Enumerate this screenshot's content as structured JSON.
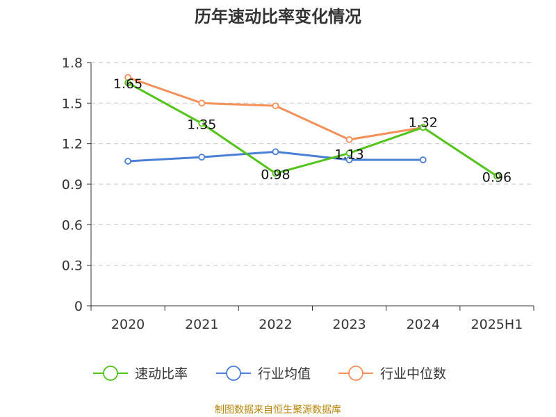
{
  "chart_data": {
    "type": "line",
    "title": "历年速动比率变化情况",
    "categories": [
      "2020",
      "2021",
      "2022",
      "2023",
      "2024",
      "2025H1"
    ],
    "ylim": [
      0,
      1.8
    ],
    "yticks": [
      "0",
      "0.3",
      "0.6",
      "0.9",
      "1.2",
      "1.5",
      "1.8"
    ],
    "grid": true,
    "legend_position": "bottom",
    "series": [
      {
        "name": "速动比率",
        "color": "#52c41a",
        "values": [
          1.65,
          1.35,
          0.98,
          1.13,
          1.32,
          0.96
        ],
        "labels": [
          "1.65",
          "1.35",
          "0.98",
          "1.13",
          "1.32",
          "0.96"
        ]
      },
      {
        "name": "行业均值",
        "color": "#4a7fd6",
        "values": [
          1.07,
          1.1,
          1.14,
          1.08,
          1.08,
          null
        ]
      },
      {
        "name": "行业中位数",
        "color": "#f4905a",
        "values": [
          1.69,
          1.5,
          1.48,
          1.23,
          1.32,
          null
        ]
      }
    ],
    "source": "制图数据来自恒生聚源数据库"
  }
}
